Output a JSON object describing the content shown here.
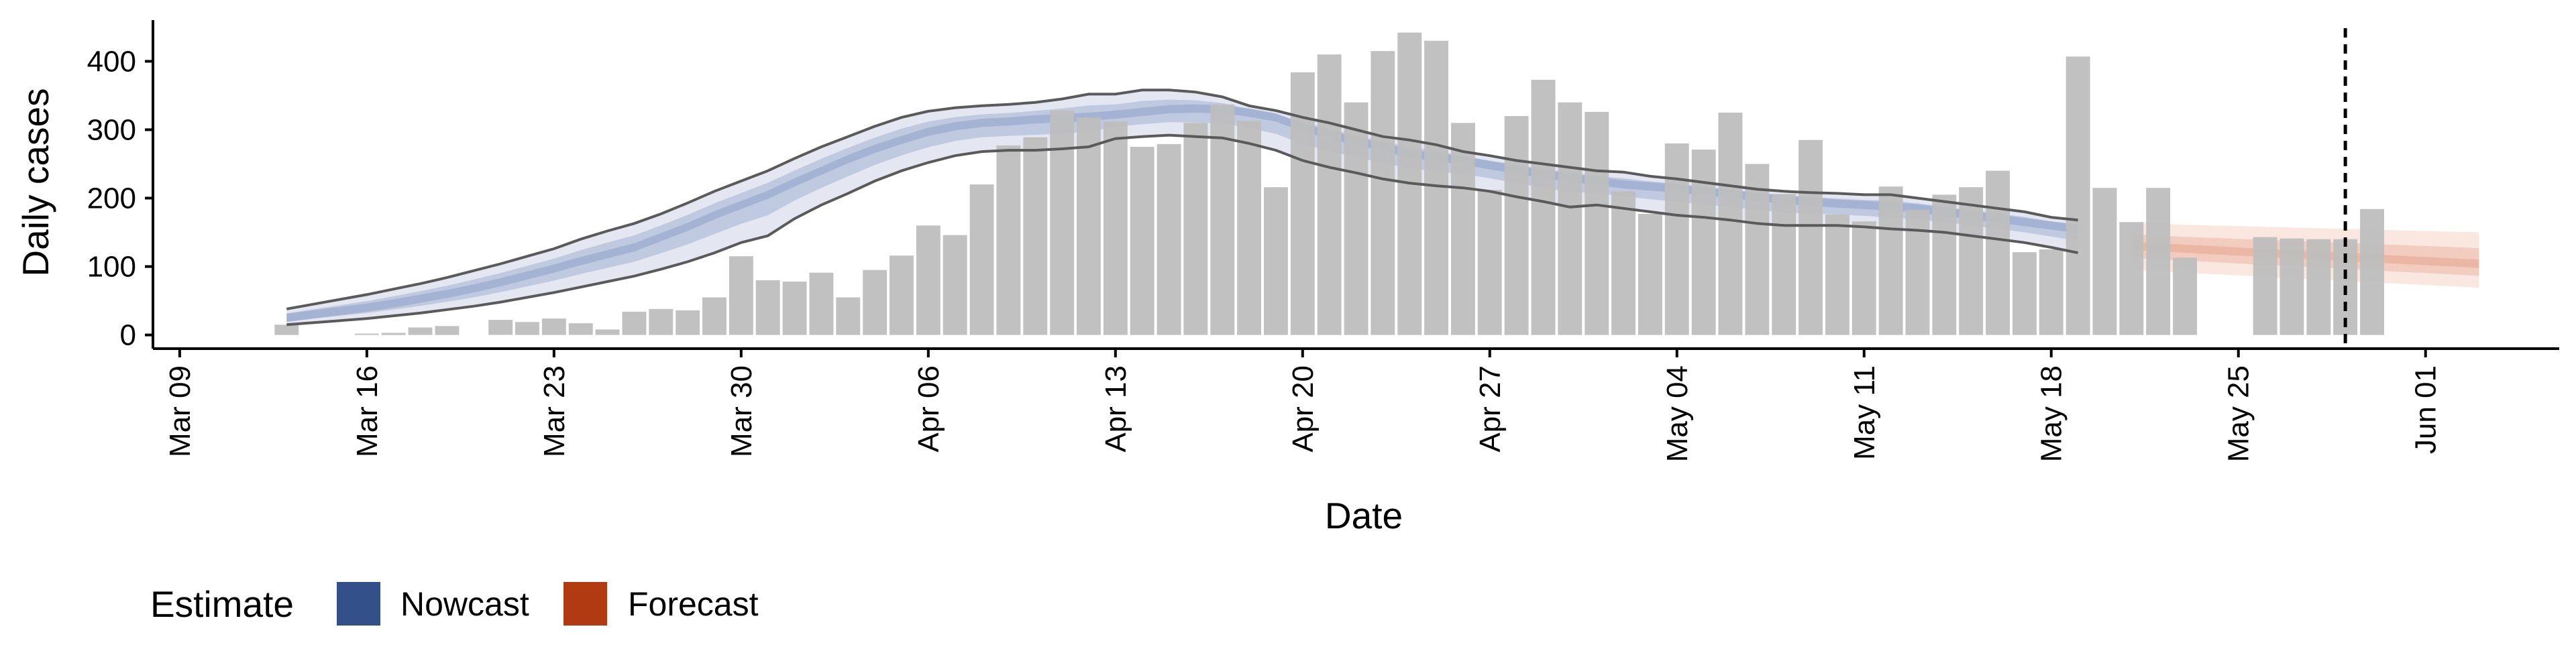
{
  "chart_data": {
    "type": "bar",
    "xlabel": "Date",
    "ylabel": "Daily cases",
    "x_domain": [
      "2020-03-08",
      "2020-06-06"
    ],
    "ylim": [
      -20,
      470
    ],
    "y_ticks": [
      0,
      100,
      200,
      300,
      400
    ],
    "x_ticks": [
      {
        "date": "2020-03-09",
        "label": "Mar 09"
      },
      {
        "date": "2020-03-16",
        "label": "Mar 16"
      },
      {
        "date": "2020-03-23",
        "label": "Mar 23"
      },
      {
        "date": "2020-03-30",
        "label": "Mar 30"
      },
      {
        "date": "2020-04-06",
        "label": "Apr 06"
      },
      {
        "date": "2020-04-13",
        "label": "Apr 13"
      },
      {
        "date": "2020-04-20",
        "label": "Apr 20"
      },
      {
        "date": "2020-04-27",
        "label": "Apr 27"
      },
      {
        "date": "2020-05-04",
        "label": "May 04"
      },
      {
        "date": "2020-05-11",
        "label": "May 11"
      },
      {
        "date": "2020-05-18",
        "label": "May 18"
      },
      {
        "date": "2020-05-25",
        "label": "May 25"
      },
      {
        "date": "2020-06-01",
        "label": "Jun 01"
      }
    ],
    "grid": false,
    "legend": {
      "position": "bottom-left",
      "title": "Estimate",
      "entries": [
        {
          "label": "Nowcast",
          "color": "#33508a"
        },
        {
          "label": "Forecast",
          "color": "#b23a10"
        }
      ]
    },
    "colors": {
      "bars": "#bebebe",
      "nowcast_outer": "#dfe3ee",
      "nowcast_inner": "#b3bfd8",
      "nowcast_median": "#9eadcf",
      "nowcast_bounds": "#5a5a5a",
      "forecast_outer": "#f8e3da",
      "forecast_inner": "#f0c7b6",
      "forecast_median": "#e8b29d",
      "vline": "#000000"
    },
    "reported_cases": {
      "start_date": "2020-03-13",
      "values": [
        15,
        null,
        null,
        2,
        3,
        11,
        13,
        null,
        22,
        19,
        24,
        17,
        8,
        34,
        38,
        36,
        55,
        115,
        80,
        78,
        91,
        55,
        95,
        116,
        160,
        146,
        220,
        277,
        289,
        328,
        318,
        312,
        275,
        279,
        310,
        337,
        313,
        216,
        384,
        410,
        340,
        415,
        442,
        430,
        310,
        212,
        320,
        373,
        340,
        326,
        210,
        177,
        280,
        271,
        325,
        250,
        206,
        285,
        176,
        166,
        217,
        183,
        205,
        216,
        240,
        121,
        125,
        407,
        215,
        165,
        215,
        113,
        null,
        null,
        143,
        141,
        140,
        140,
        184
      ]
    },
    "nowcast": {
      "start_date": "2020-03-13",
      "median": [
        25,
        30,
        35,
        40,
        46,
        53,
        60,
        68,
        77,
        87,
        97,
        108,
        118,
        128,
        143,
        158,
        175,
        190,
        205,
        223,
        240,
        257,
        272,
        285,
        297,
        305,
        310,
        312,
        315,
        317,
        319,
        322,
        326,
        330,
        331,
        330,
        325,
        318,
        303,
        293,
        283,
        275,
        265,
        260,
        255,
        248,
        242,
        235,
        230,
        225,
        220,
        217,
        214,
        210,
        206,
        202,
        198,
        195,
        192,
        190,
        188,
        185,
        180,
        175,
        170,
        165,
        160,
        155
      ],
      "lower90": [
        15,
        18,
        21,
        24,
        28,
        32,
        37,
        42,
        48,
        55,
        62,
        70,
        78,
        86,
        96,
        107,
        120,
        135,
        145,
        170,
        190,
        207,
        225,
        240,
        252,
        262,
        268,
        270,
        270,
        272,
        275,
        287,
        290,
        292,
        290,
        288,
        280,
        270,
        255,
        245,
        237,
        228,
        222,
        218,
        215,
        210,
        202,
        195,
        187,
        190,
        185,
        180,
        175,
        172,
        168,
        163,
        160,
        160,
        160,
        158,
        155,
        153,
        150,
        145,
        140,
        135,
        128,
        120
      ],
      "upper90": [
        38,
        45,
        52,
        59,
        67,
        75,
        84,
        94,
        104,
        115,
        126,
        140,
        152,
        163,
        177,
        193,
        210,
        225,
        240,
        258,
        275,
        290,
        305,
        318,
        327,
        332,
        335,
        337,
        340,
        345,
        352,
        352,
        358,
        358,
        355,
        348,
        335,
        328,
        318,
        310,
        300,
        290,
        285,
        278,
        268,
        262,
        255,
        250,
        245,
        240,
        238,
        232,
        228,
        223,
        218,
        213,
        210,
        208,
        207,
        205,
        205,
        200,
        195,
        190,
        185,
        180,
        172,
        168
      ]
    },
    "forecast": {
      "start_date": "2020-05-21",
      "median": [
        130,
        128,
        126,
        124,
        122,
        120,
        118,
        116,
        114,
        112,
        110,
        108,
        106,
        104
      ],
      "lower90": [
        95,
        93,
        91,
        89,
        87,
        85,
        83,
        81,
        79,
        77,
        75,
        73,
        71,
        69
      ],
      "upper90": [
        165,
        163,
        161,
        160,
        159,
        158,
        157,
        156,
        155,
        154,
        153,
        152,
        151,
        150
      ]
    },
    "reference_line_date": "2020-05-29"
  }
}
